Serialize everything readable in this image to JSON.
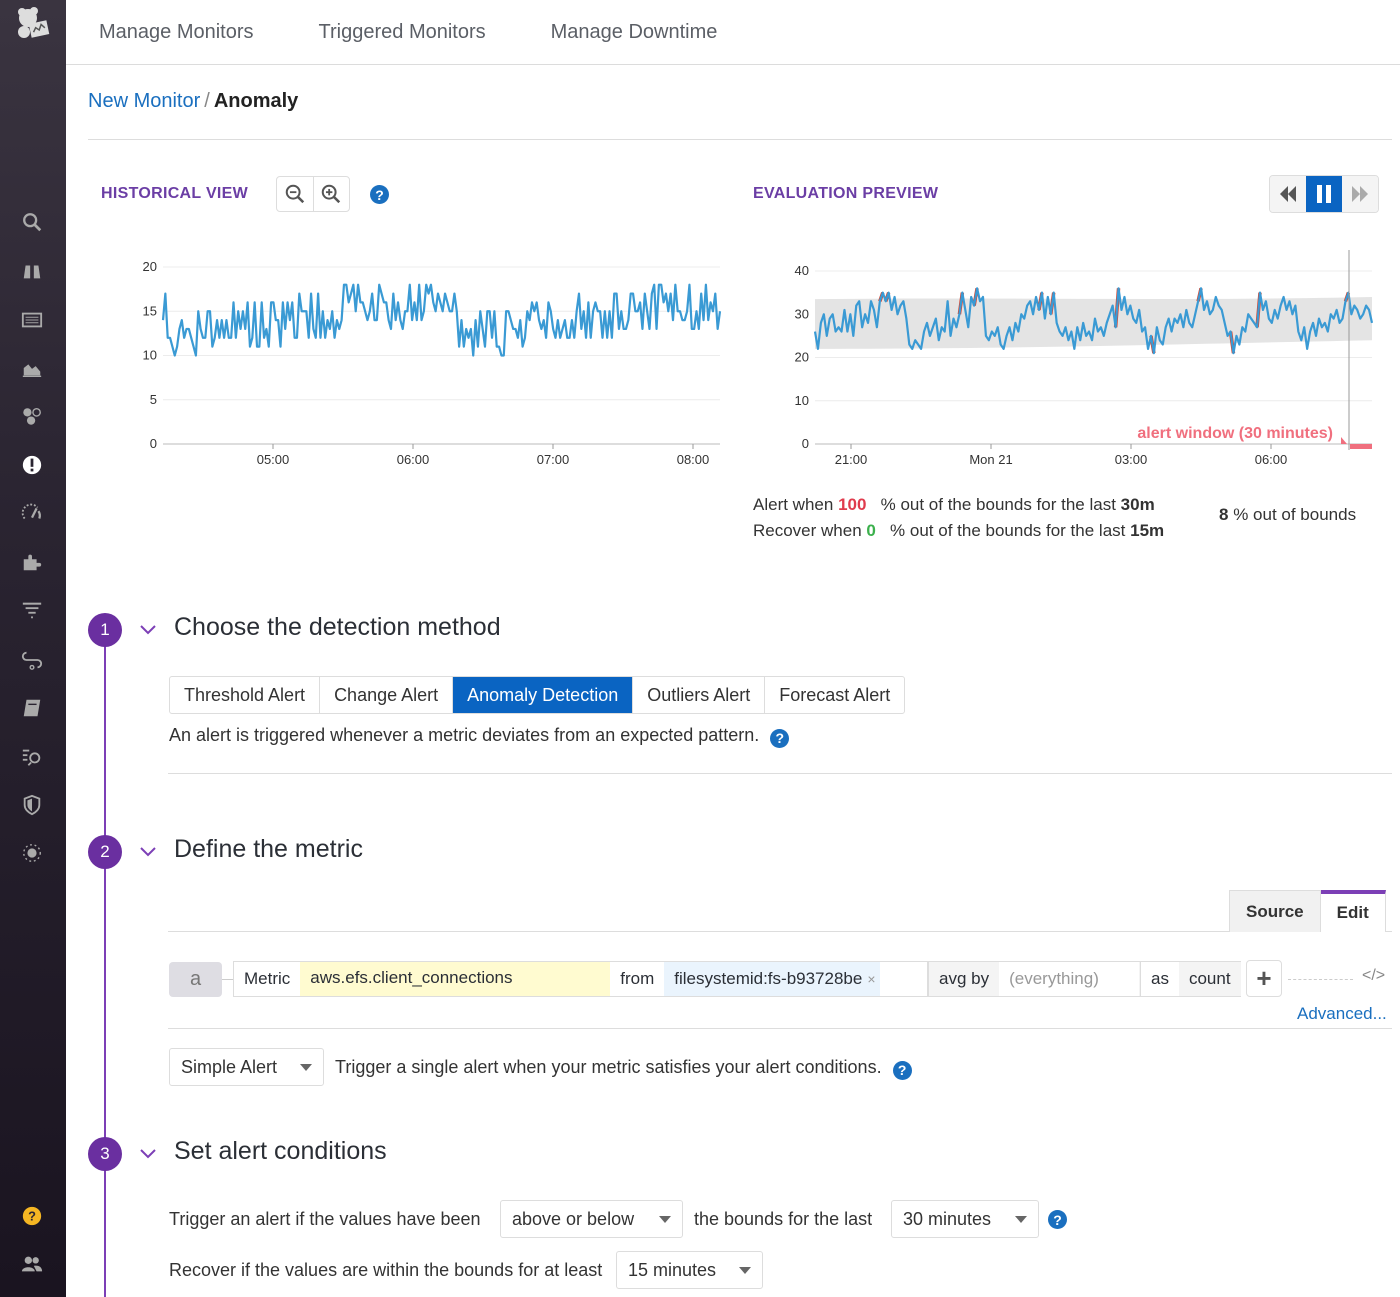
{
  "nav": {
    "items": [
      "Manage Monitors",
      "Triggered Monitors",
      "Manage Downtime"
    ]
  },
  "breadcrumb": {
    "parent": "New Monitor",
    "separator": "/",
    "current": "Anomaly"
  },
  "sidebar": {
    "icons": [
      "search-icon",
      "binoculars-icon",
      "list-icon",
      "area-chart-icon",
      "hexagons-icon",
      "monitor-alert-icon",
      "gauge-icon",
      "puzzle-icon",
      "filter-logs-icon",
      "link-icon",
      "notebook-icon",
      "apm-search-icon",
      "shield-icon",
      "network-icon",
      "help-icon",
      "team-icon"
    ]
  },
  "historical": {
    "title": "HISTORICAL VIEW",
    "zoom_out": "zoom-out",
    "zoom_in": "zoom-in",
    "help": "?"
  },
  "evaluation": {
    "title": "EVALUATION PREVIEW",
    "alert_prefix": "Alert when",
    "alert_value": "100",
    "alert_mid": "% out of the bounds for the last",
    "alert_window": "30m",
    "recover_prefix": "Recover when",
    "recover_value": "0",
    "recover_mid": "% out of the bounds for the last",
    "recover_window": "15m",
    "oob_value": "8",
    "oob_label": "% out of bounds",
    "alert_window_label": "alert window (30 minutes)"
  },
  "chart_data": [
    {
      "type": "line",
      "title": "HISTORICAL VIEW",
      "x_ticks": [
        "05:00",
        "06:00",
        "07:00",
        "08:00"
      ],
      "y_ticks": [
        0,
        5,
        10,
        15,
        20
      ],
      "ylim": [
        0,
        20
      ],
      "series": [
        {
          "name": "aws.efs.client_connections",
          "color": "#3a9ad4",
          "values": [
            14,
            17,
            12,
            12,
            11,
            10,
            11,
            13,
            14,
            12,
            13,
            13,
            12,
            11,
            10,
            15,
            13,
            12,
            12,
            15,
            15,
            11,
            12,
            14,
            12,
            14,
            12,
            14,
            12,
            12,
            16,
            12,
            15,
            13,
            15,
            13,
            16,
            11,
            12,
            16,
            11,
            11,
            16,
            12,
            13,
            11,
            16,
            16,
            14,
            14,
            11,
            16,
            13,
            16,
            14,
            16,
            12,
            12,
            17,
            15,
            15,
            15,
            12,
            17,
            13,
            12,
            17,
            12,
            15,
            12,
            14,
            13,
            15,
            12,
            14,
            13,
            14,
            18,
            18,
            16,
            17,
            18,
            15,
            18,
            16,
            16,
            15,
            14,
            15,
            17,
            14,
            14,
            18,
            17,
            16,
            16,
            14,
            13,
            17,
            14,
            16,
            14,
            13,
            15,
            15,
            18,
            14,
            16,
            14,
            18,
            14,
            15,
            18,
            17,
            18,
            16,
            15,
            17,
            16,
            15,
            17,
            16,
            15,
            15,
            17,
            15,
            11,
            14,
            11,
            13,
            12,
            13,
            10,
            14,
            11,
            15,
            13,
            11,
            15,
            15,
            12,
            15,
            11,
            11,
            10,
            10,
            15,
            15,
            14,
            13,
            13,
            12,
            14,
            11,
            12,
            15,
            14,
            16,
            15,
            16,
            14,
            13,
            14,
            12,
            16,
            15,
            13,
            12,
            14,
            12,
            13,
            14,
            12,
            12,
            14,
            12,
            15,
            17,
            13,
            15,
            12,
            16,
            12,
            15,
            16,
            15,
            15,
            12,
            15,
            12,
            15,
            12,
            17,
            17,
            13,
            15,
            13,
            13,
            14,
            17,
            17,
            15,
            15,
            16,
            13,
            17,
            15,
            13,
            17,
            18,
            13,
            18,
            18,
            16,
            17,
            15,
            17,
            14,
            18,
            15,
            15,
            14,
            14,
            15,
            18,
            13,
            13,
            15,
            13,
            17,
            14,
            18,
            14,
            16,
            15,
            17,
            13,
            15
          ]
        }
      ],
      "grid": true
    },
    {
      "type": "line",
      "title": "EVALUATION PREVIEW",
      "x_ticks": [
        "21:00",
        "Mon 21",
        "03:00",
        "06:00"
      ],
      "y_ticks": [
        0,
        10,
        20,
        30,
        40
      ],
      "ylim": [
        0,
        40
      ],
      "bounds_band": {
        "lower": 22,
        "upper": 34,
        "color": "#e4e4e4"
      },
      "series": [
        {
          "name": "aws.efs.client_connections",
          "color": "#3a9ad4",
          "out_of_bounds_color": "#d9432b",
          "values": [
            26,
            22,
            28,
            30,
            25,
            29,
            30,
            26,
            27,
            26,
            31,
            26,
            30,
            25,
            32,
            33,
            27,
            30,
            28,
            33,
            31,
            27,
            33,
            35,
            33,
            35,
            31,
            34,
            30,
            32,
            33,
            29,
            23,
            22,
            24,
            23,
            22,
            26,
            28,
            25,
            27,
            29,
            24,
            27,
            26,
            33,
            25,
            29,
            27,
            30,
            35,
            31,
            27,
            34,
            32,
            36,
            33,
            34,
            25,
            24,
            26,
            25,
            27,
            23,
            22,
            25,
            27,
            24,
            28,
            26,
            30,
            29,
            32,
            33,
            30,
            34,
            31,
            35,
            29,
            34,
            30,
            35,
            28,
            26,
            25,
            27,
            24,
            26,
            22,
            27,
            24,
            28,
            25,
            26,
            24,
            29,
            26,
            27,
            25,
            28,
            30,
            32,
            27,
            36,
            31,
            34,
            30,
            32,
            29,
            28,
            31,
            26,
            27,
            22,
            25,
            21,
            27,
            24,
            23,
            27,
            29,
            26,
            29,
            28,
            30,
            27,
            31,
            28,
            27,
            30,
            33,
            36,
            31,
            33,
            30,
            31,
            34,
            32,
            31,
            28,
            25,
            26,
            21,
            25,
            23,
            27,
            26,
            30,
            29,
            28,
            27,
            35,
            31,
            33,
            29,
            28,
            31,
            29,
            32,
            34,
            31,
            33,
            30,
            32,
            26,
            24,
            27,
            22,
            26,
            28,
            25,
            29,
            27,
            28,
            26,
            30,
            29,
            31,
            28,
            29,
            33,
            35,
            30,
            32,
            31,
            29,
            30,
            32,
            31,
            28
          ]
        }
      ],
      "annotation": "alert window (30 minutes)",
      "grid": true
    }
  ],
  "steps": [
    {
      "number": "1",
      "title": "Choose the detection method"
    },
    {
      "number": "2",
      "title": "Define the metric"
    },
    {
      "number": "3",
      "title": "Set alert conditions"
    }
  ],
  "detection": {
    "methods": [
      "Threshold Alert",
      "Change Alert",
      "Anomaly Detection",
      "Outliers Alert",
      "Forecast Alert"
    ],
    "selected": "Anomaly Detection",
    "description": "An alert is triggered whenever a metric deviates from an expected pattern."
  },
  "metric": {
    "tabs": [
      "Source",
      "Edit"
    ],
    "active_tab": "Edit",
    "query_label": "a",
    "metric_label": "Metric",
    "metric_value": "aws.efs.client_connections",
    "from_label": "from",
    "from_tag": "filesystemid:fs-b93728be",
    "remove_tag": "×",
    "avg_by_label": "avg by",
    "avg_by_placeholder": "(everything)",
    "as_label": "as",
    "as_value": "count",
    "add_label": "+",
    "code_label": "</>",
    "advanced_link": "Advanced...",
    "alert_type": "Simple Alert",
    "alert_type_description": "Trigger a single alert when your metric satisfies your alert conditions."
  },
  "conditions": {
    "trigger_prefix": "Trigger an alert if the values have been",
    "direction": "above or below",
    "trigger_mid": "the bounds for the last",
    "trigger_window": "30 minutes",
    "recover_prefix": "Recover if the values are within the bounds for at least",
    "recover_window": "15 minutes"
  }
}
